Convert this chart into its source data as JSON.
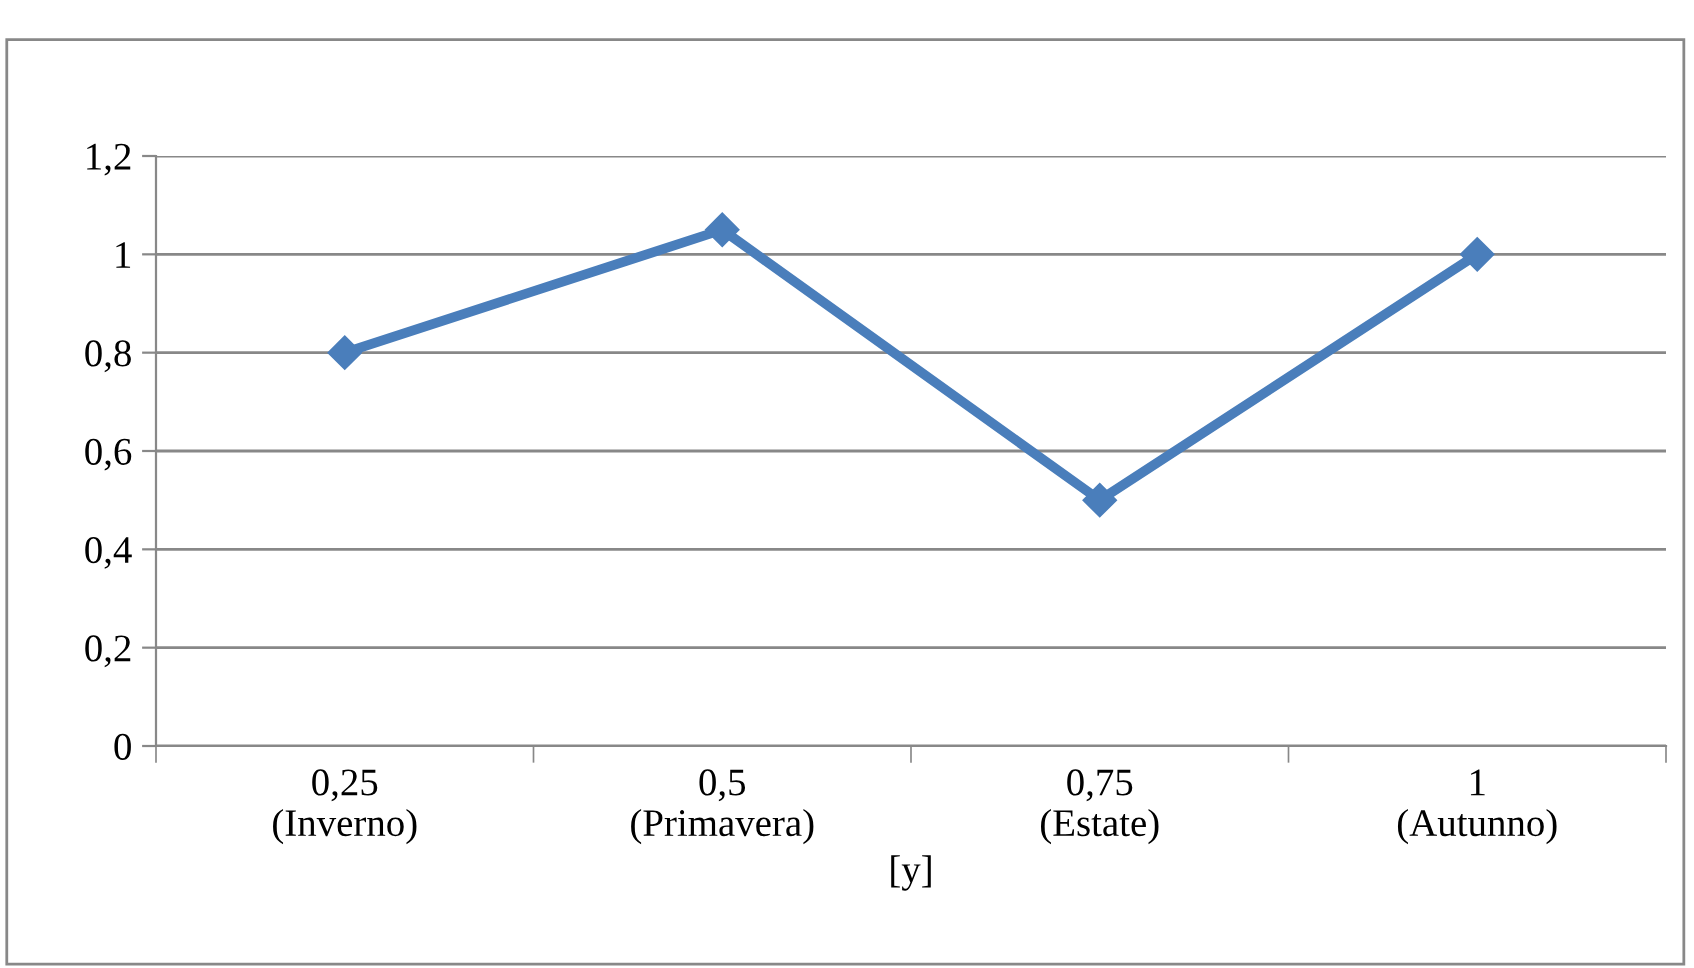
{
  "chart_data": {
    "type": "line",
    "xlabel": "[y]",
    "categories": [
      "0,25\n(Inverno)",
      "0,5\n(Primavera)",
      "0,75\n(Estate)",
      "1\n(Autunno)"
    ],
    "series": [
      {
        "color": "#4a7ebb",
        "values": [
          0.8,
          1.05,
          0.5,
          1.0
        ]
      }
    ],
    "ylim": [
      0,
      1.2
    ],
    "yticks": [
      {
        "value": 0,
        "label": "0"
      },
      {
        "value": 0.2,
        "label": "0,2"
      },
      {
        "value": 0.4,
        "label": "0,4"
      },
      {
        "value": 0.6,
        "label": "0,6"
      },
      {
        "value": 0.8,
        "label": "0,8"
      },
      {
        "value": 1,
        "label": "1"
      },
      {
        "value": 1.2,
        "label": "1,2"
      }
    ],
    "grid": "y",
    "marker": "diamond",
    "line_style": "solid"
  }
}
